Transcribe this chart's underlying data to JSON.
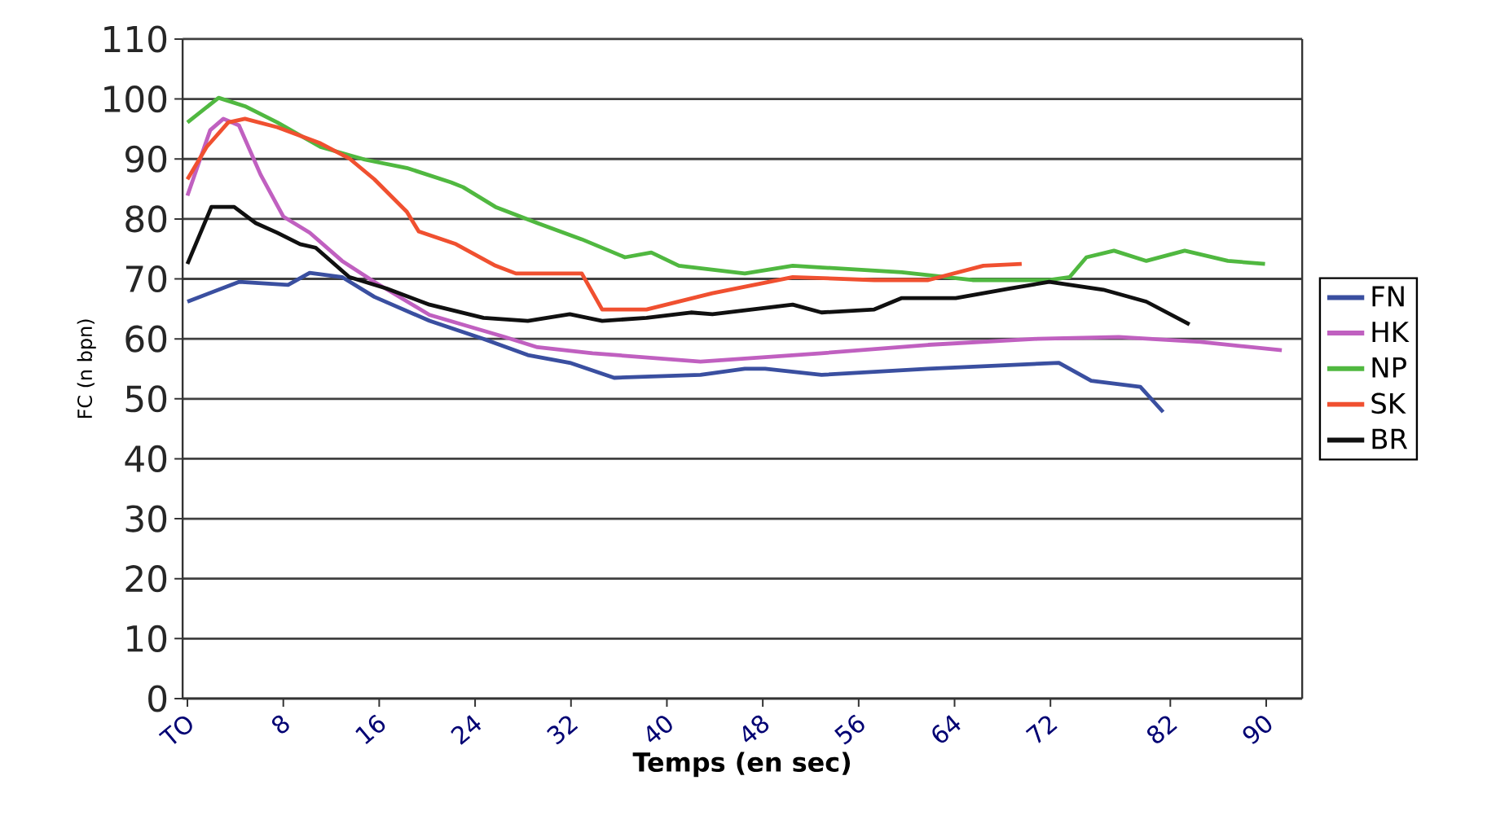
{
  "chart_data": {
    "type": "line",
    "xlabel": "Temps (en sec)",
    "ylabel": "FC (n bpn)",
    "xlim": [
      -0.4,
      93
    ],
    "ylim": [
      0,
      110
    ],
    "xticks": [
      {
        "value": 0,
        "label": "TO"
      },
      8,
      16,
      24,
      32,
      40,
      48,
      56,
      64,
      72,
      82,
      90
    ],
    "yticks": [
      0,
      10,
      20,
      30,
      40,
      50,
      60,
      70,
      80,
      90,
      100,
      110
    ],
    "grid": "y",
    "legend": "right",
    "marker": "none",
    "line_style": "solid",
    "series": [
      {
        "name": "FN",
        "color": "#3a4fa0",
        "x": [
          0,
          4.3,
          8.4,
          10.2,
          12.9,
          15.6,
          20.2,
          24.7,
          28.4,
          31.9,
          35.6,
          42.8,
          46.5,
          48.2,
          52.9,
          61.8,
          72.7,
          75.4,
          79.5,
          81.4
        ],
        "values": [
          66.2,
          69.5,
          69,
          71,
          70.3,
          67,
          63,
          60,
          57.3,
          56,
          53.5,
          54,
          55,
          55,
          54,
          55,
          56,
          53,
          52,
          47.8
        ]
      },
      {
        "name": "HK",
        "color": "#c060c0",
        "x": [
          0,
          1.9,
          3,
          4.3,
          6.1,
          8,
          10.2,
          12.9,
          15.6,
          20.2,
          26.5,
          29.2,
          33.8,
          42.8,
          46.5,
          52.9,
          61.8,
          70.9,
          77.7,
          84.5,
          91.3
        ],
        "values": [
          83.9,
          94.8,
          96.7,
          95.6,
          87.4,
          80.4,
          77.7,
          73,
          69.5,
          64,
          60.3,
          58.6,
          57.6,
          56.2,
          56.7,
          57.6,
          59,
          60,
          60.3,
          59.5,
          58.1
        ]
      },
      {
        "name": "NP",
        "color": "#50b840",
        "x": [
          0,
          2.6,
          4.8,
          7.5,
          11.1,
          14.8,
          18.3,
          22,
          23,
          25.7,
          29.2,
          32.9,
          36.5,
          38.7,
          41,
          46.5,
          50.5,
          59.6,
          65.5,
          71.9,
          73.6,
          75,
          77.3,
          80,
          83.2,
          86.8,
          89.9
        ],
        "values": [
          96.1,
          100.2,
          98.8,
          96.1,
          92,
          89.9,
          88.5,
          86.1,
          85.3,
          82,
          79.3,
          76.6,
          73.6,
          74.4,
          72.2,
          70.9,
          72.2,
          71.1,
          69.8,
          69.8,
          70.3,
          73.6,
          74.7,
          73,
          74.7,
          73,
          72.5
        ]
      },
      {
        "name": "SK",
        "color": "#f05030",
        "x": [
          0,
          1.6,
          3.4,
          4.8,
          7.5,
          11.1,
          13.5,
          15.6,
          18.3,
          19.3,
          22.4,
          25.7,
          27.4,
          32.9,
          34.6,
          38.3,
          43.8,
          50.5,
          57.3,
          61.8,
          66.4,
          69.6
        ],
        "values": [
          86.6,
          92,
          96.1,
          96.7,
          95.3,
          92.6,
          90.1,
          86.6,
          81.2,
          77.9,
          75.8,
          72.2,
          70.9,
          70.9,
          64.9,
          64.9,
          67.6,
          70.3,
          69.8,
          69.8,
          72.2,
          72.5
        ]
      },
      {
        "name": "BR",
        "color": "#101010",
        "x": [
          0,
          2,
          3.9,
          5.7,
          7.5,
          9.4,
          10.7,
          13.5,
          16.6,
          20.2,
          24.7,
          28.4,
          31.9,
          34.6,
          38.3,
          42,
          43.8,
          50.5,
          52.9,
          57.3,
          59.6,
          64.1,
          68.6,
          71.9,
          76.4,
          80,
          83.6
        ],
        "values": [
          72.5,
          82,
          82,
          79.3,
          77.7,
          75.8,
          75.2,
          70.3,
          68.4,
          65.7,
          63.5,
          63,
          64.1,
          63,
          63.5,
          64.4,
          64.1,
          65.7,
          64.4,
          64.9,
          66.8,
          66.8,
          68.4,
          69.5,
          68.2,
          66.2,
          62.4
        ]
      }
    ]
  }
}
